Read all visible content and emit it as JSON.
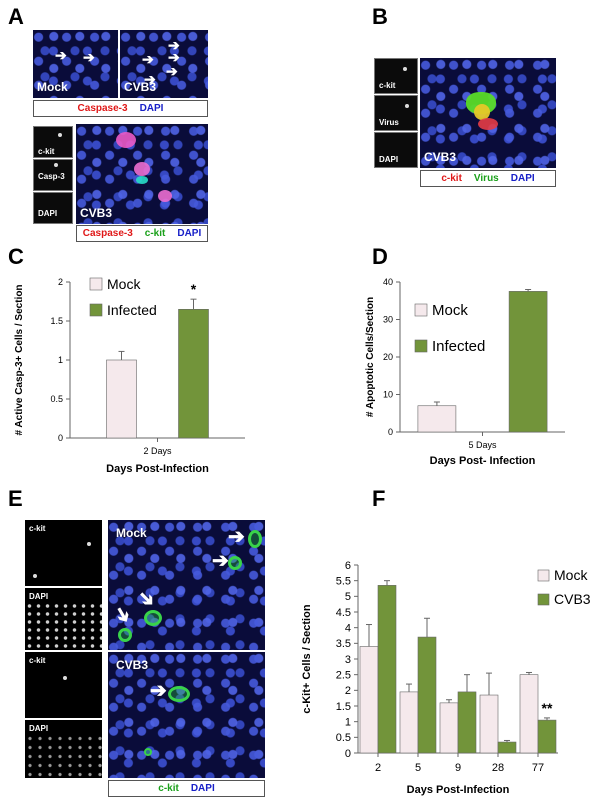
{
  "panels": {
    "A": {
      "letter": "A",
      "top_left_label": "Mock",
      "top_right_label": "CVB3",
      "top_legend": [
        "Caspase-3",
        "DAPI"
      ],
      "channels": [
        "c-kit",
        "Casp-3",
        "DAPI"
      ],
      "big_label": "CVB3",
      "bottom_legend": [
        "Caspase-3",
        "c-kit",
        "DAPI"
      ]
    },
    "B": {
      "letter": "B",
      "channels": [
        "c-kit",
        "Virus",
        "DAPI"
      ],
      "big_label": "CVB3",
      "legend": [
        "c-kit",
        "Virus",
        "DAPI"
      ]
    },
    "C": {
      "letter": "C"
    },
    "D": {
      "letter": "D"
    },
    "E": {
      "letter": "E",
      "mock_channels": [
        "c-kit",
        "DAPI"
      ],
      "mock_label": "Mock",
      "cvb3_channels": [
        "c-kit",
        "DAPI"
      ],
      "cvb3_label": "CVB3",
      "legend": [
        "c-kit",
        "DAPI"
      ]
    },
    "F": {
      "letter": "F"
    }
  },
  "colors": {
    "mock_fill": "#f5e9ec",
    "infected_fill": "#72943a",
    "red_text": "#e01818",
    "green_text": "#1aa01a",
    "blue_text": "#1820c8"
  },
  "chart_data": [
    {
      "panel": "C",
      "type": "bar",
      "categories": [
        "2 Days"
      ],
      "series": [
        {
          "name": "Mock",
          "values": [
            1.0
          ],
          "error": [
            0.11
          ]
        },
        {
          "name": "Infected",
          "values": [
            1.65
          ],
          "error": [
            0.13
          ]
        }
      ],
      "ylabel": "# Active Casp-3+ Cells / Section",
      "xlabel": "Days Post-Infection",
      "ylim": [
        0,
        2
      ],
      "yticks": [
        "0",
        "0.5",
        "1",
        "1.5",
        "2"
      ],
      "annotations": [
        "*"
      ],
      "legend_position": "top-left"
    },
    {
      "panel": "D",
      "type": "bar",
      "categories": [
        "5 Days"
      ],
      "series": [
        {
          "name": "Mock",
          "values": [
            7.0
          ],
          "error": [
            1.0
          ]
        },
        {
          "name": "Infected",
          "values": [
            37.5
          ],
          "error": [
            0.5
          ]
        }
      ],
      "ylabel": "# Apoptotic Cells/Section",
      "xlabel": "Days Post- Infection",
      "ylim": [
        0,
        40
      ],
      "yticks": [
        "0",
        "10",
        "20",
        "30",
        "40"
      ],
      "legend_position": "top-left"
    },
    {
      "panel": "F",
      "type": "bar",
      "categories": [
        "2",
        "5",
        "9",
        "28",
        "77"
      ],
      "series": [
        {
          "name": "Mock",
          "values": [
            3.4,
            1.95,
            1.6,
            1.85,
            2.5
          ],
          "error": [
            0.7,
            0.25,
            0.1,
            0.7,
            0.07
          ]
        },
        {
          "name": "CVB3",
          "values": [
            5.35,
            3.7,
            1.95,
            0.35,
            1.05
          ],
          "error": [
            0.15,
            0.6,
            0.55,
            0.05,
            0.07
          ]
        }
      ],
      "ylabel": "c-Kit+ Cells / Section",
      "xlabel": "Days Post-Infection",
      "ylim": [
        0,
        6
      ],
      "yticks": [
        "0",
        "0.5",
        "1",
        "1.5",
        "2",
        "2.5",
        "3",
        "3.5",
        "4",
        "4.5",
        "5",
        "5.5",
        "6"
      ],
      "annotations": [
        "**"
      ],
      "legend_position": "top-right"
    }
  ]
}
